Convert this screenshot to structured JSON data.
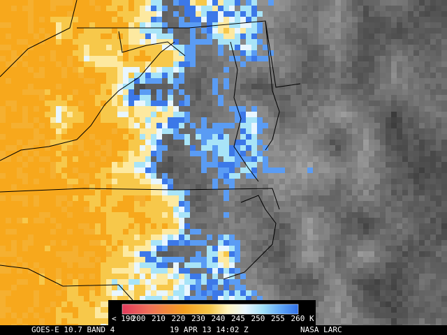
{
  "colorbar": {
    "labels": [
      "< 190",
      "200",
      "210",
      "220",
      "230",
      "240",
      "245",
      "250",
      "255",
      "260 K"
    ]
  },
  "footer": {
    "product": "GOES-E 10.7 BAND 4",
    "time": "19 APR 13 14:02 Z",
    "source": "NASA LARC"
  }
}
